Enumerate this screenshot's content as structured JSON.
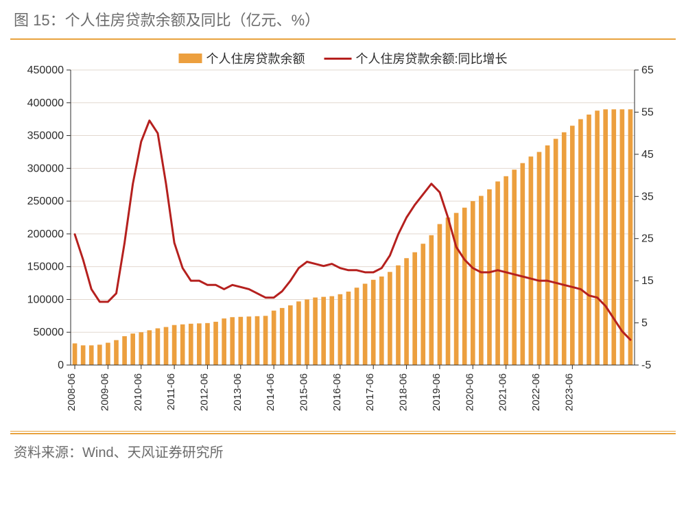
{
  "title": "图 15：个人住房贷款余额及同比（亿元、%）",
  "source": "资料来源：Wind、天风证券研究所",
  "chart": {
    "type": "bar+line-dual-axis",
    "background_color": "#ffffff",
    "rule_color": "#e8a23d",
    "grid_color": "#e2d8cf",
    "text_color": "#2b2b2b",
    "title_color": "#6b6b6b",
    "bar_color": "#ec9f3e",
    "line_color": "#b5201e",
    "line_width": 3,
    "bar_width_ratio": 0.55,
    "y_left": {
      "min": 0,
      "max": 450000,
      "step": 50000
    },
    "y_right": {
      "min": -5,
      "max": 65,
      "step": 10
    },
    "x_labels": [
      "2008-06",
      "2009-06",
      "2010-06",
      "2011-06",
      "2012-06",
      "2013-06",
      "2014-06",
      "2015-06",
      "2016-06",
      "2017-06",
      "2018-06",
      "2019-06",
      "2020-06",
      "2021-06",
      "2022-06",
      "2023-06"
    ],
    "x_label_stride": 4,
    "legend": [
      {
        "type": "bar",
        "label": "个人住房贷款余额"
      },
      {
        "type": "line",
        "label": "个人住房贷款余额:同比增长"
      }
    ],
    "bars": [
      33000,
      30000,
      30000,
      31000,
      34000,
      38000,
      44000,
      48000,
      50000,
      53000,
      56000,
      58000,
      61000,
      62000,
      63000,
      63500,
      64000,
      66000,
      71000,
      73000,
      73500,
      74000,
      74500,
      75000,
      83000,
      87000,
      91000,
      97000,
      100000,
      103000,
      104000,
      105000,
      108000,
      112000,
      118000,
      124000,
      130000,
      135000,
      142000,
      152000,
      163000,
      172000,
      185000,
      198000,
      215000,
      225000,
      232000,
      240000,
      250000,
      258000,
      268000,
      280000,
      288000,
      298000,
      308000,
      318000,
      325000,
      335000,
      345000,
      355000,
      365000,
      375000,
      382000,
      388000,
      390000,
      390000,
      390000,
      390000
    ],
    "line": [
      26,
      20,
      13,
      10,
      10,
      12,
      24,
      38,
      48,
      53,
      50,
      38,
      24,
      18,
      15,
      15,
      14,
      14,
      13,
      14,
      13.5,
      13,
      12,
      11,
      11,
      12.5,
      15,
      18,
      19.5,
      19,
      18.5,
      19,
      18,
      17.5,
      17.5,
      17,
      17,
      18,
      21,
      26,
      30,
      33,
      35.5,
      38,
      36,
      30,
      23,
      20,
      18,
      17,
      17,
      17.5,
      17,
      16.5,
      16,
      15.5,
      15,
      15,
      14.5,
      14,
      13.5,
      13,
      11.5,
      11,
      9,
      6,
      3,
      1
    ],
    "axis_fontsize": 16,
    "x_fontsize": 15
  }
}
